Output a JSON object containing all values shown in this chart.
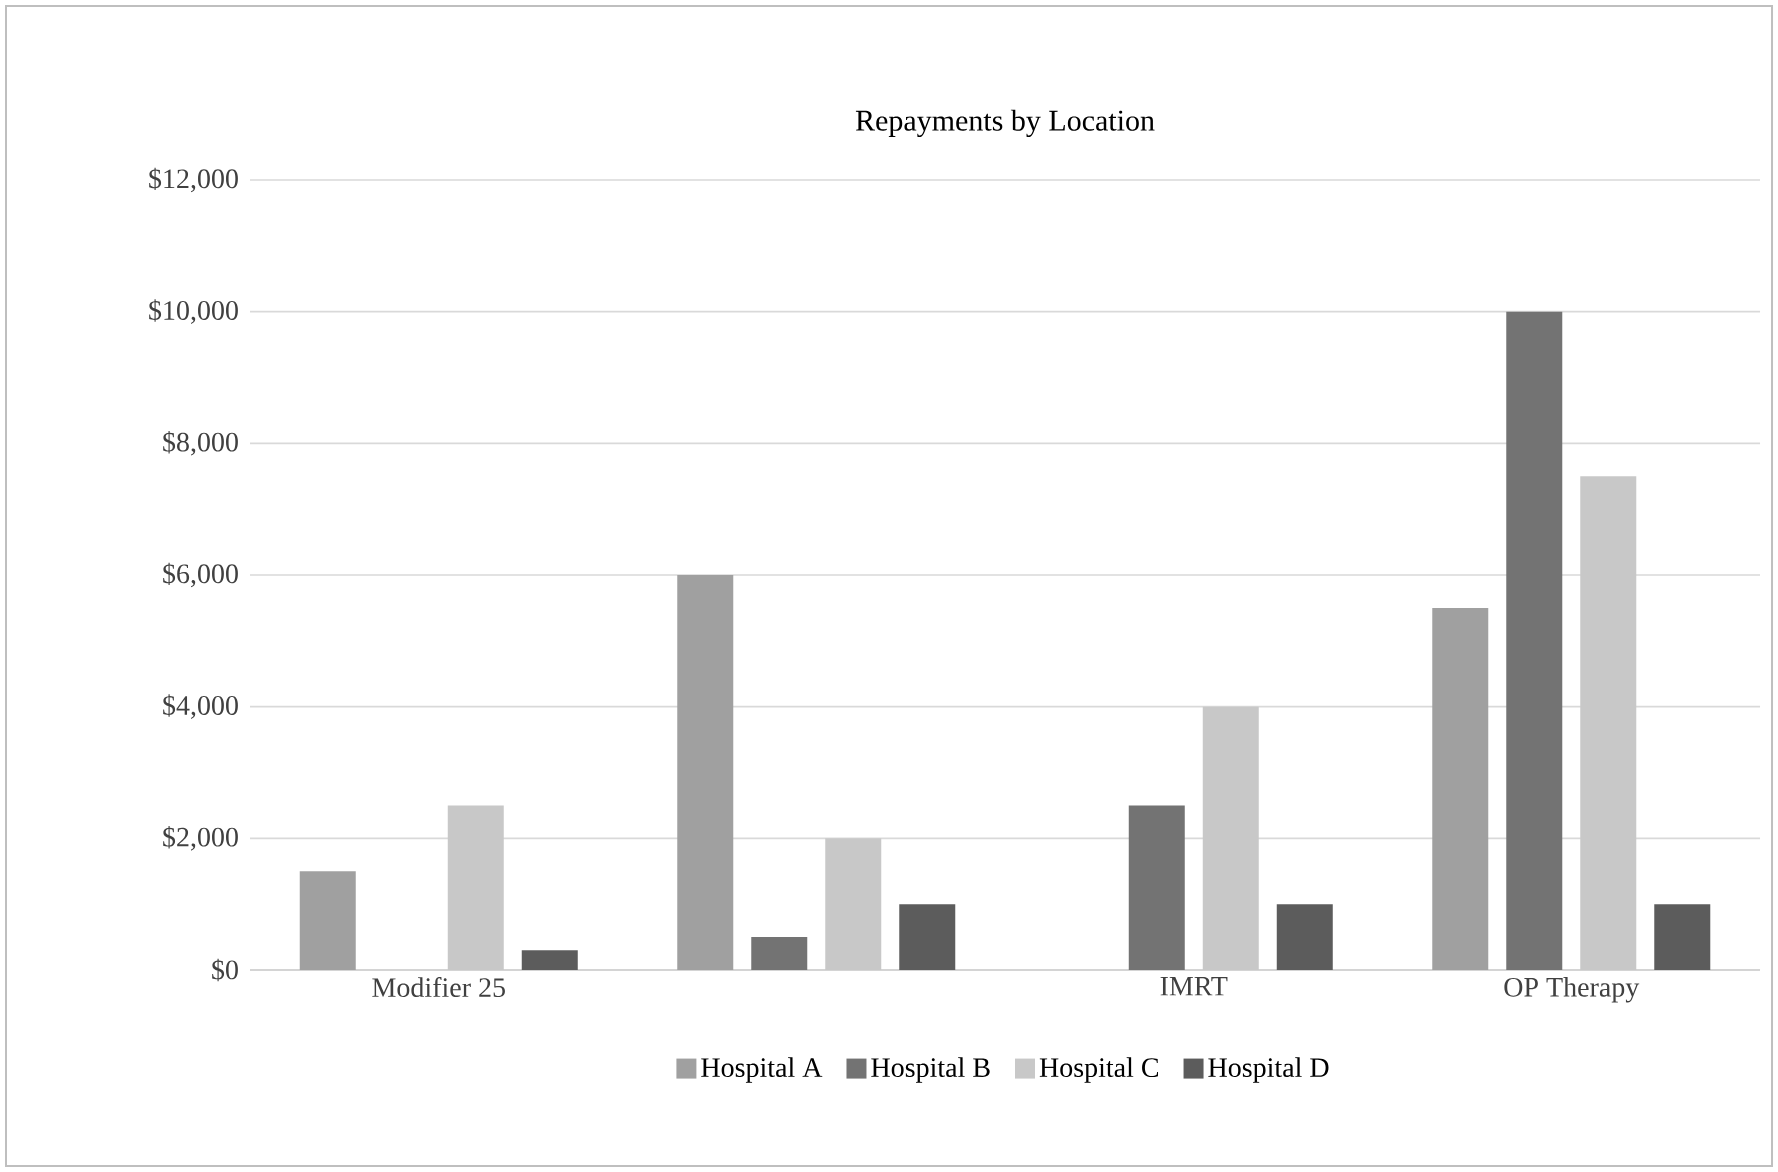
{
  "chart_data": {
    "type": "bar",
    "title": "Repayments  by Location",
    "categories": [
      "Modifier 25",
      null,
      "IMRT",
      "OP Therapy"
    ],
    "series": [
      {
        "name": "Hospital A",
        "color": "#a0a0a0",
        "values": [
          1500,
          6000,
          null,
          5500
        ]
      },
      {
        "name": "Hospital B",
        "color": "#737373",
        "values": [
          null,
          500,
          2500,
          10000
        ]
      },
      {
        "name": "Hospital C",
        "color": "#c8c8c8",
        "values": [
          2500,
          2000,
          4000,
          7500
        ]
      },
      {
        "name": "Hospital D",
        "color": "#5c5c5c",
        "values": [
          300,
          1000,
          1000,
          1000
        ]
      }
    ],
    "ylim": [
      0,
      12000
    ],
    "yticks": [
      {
        "value": 0,
        "label": "$0"
      },
      {
        "value": 2000,
        "label": "$2,000"
      },
      {
        "value": 4000,
        "label": "$4,000"
      },
      {
        "value": 6000,
        "label": "$6,000"
      },
      {
        "value": 8000,
        "label": "$8,000"
      },
      {
        "value": 10000,
        "label": "$10,000"
      },
      {
        "value": 12000,
        "label": "$12,000"
      }
    ],
    "grid": "y",
    "legend": "bottom"
  }
}
